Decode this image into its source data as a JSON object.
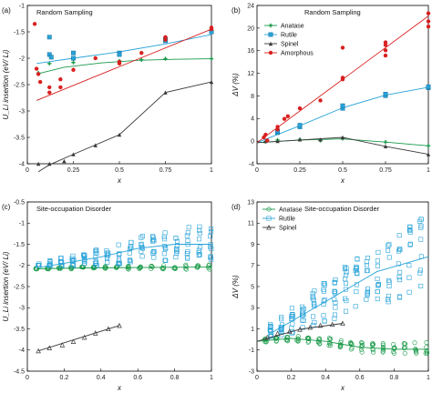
{
  "chart_data": [
    {
      "panel": "(a)",
      "type": "scatter",
      "title": "Random Sampling",
      "xlabel": "x",
      "ylabel": "U_Li insertion (eV/ Li)",
      "xlim": [
        0,
        1
      ],
      "ylim": [
        -4,
        -1
      ],
      "xticks": [
        "0",
        "0.25",
        "0.5",
        "0.75",
        "1"
      ],
      "yticks": [
        "-4",
        "-3.5",
        "-3",
        "-2.5",
        "-2",
        "-1.5",
        "-1"
      ],
      "series": [
        {
          "color": "#1a9a4a",
          "marker": "plus",
          "points": [
            [
              0.06,
              -2.28
            ],
            [
              0.12,
              -2.1
            ],
            [
              0.25,
              -2.08
            ],
            [
              0.5,
              -2.05
            ],
            [
              0.62,
              -2.03
            ],
            [
              0.75,
              -2.01
            ],
            [
              1.0,
              -2.01
            ]
          ],
          "fit": [
            [
              0.05,
              -2.3
            ],
            [
              0.2,
              -2.17
            ],
            [
              0.4,
              -2.09
            ],
            [
              0.6,
              -2.04
            ],
            [
              0.8,
              -2.02
            ],
            [
              1.0,
              -2.01
            ]
          ]
        },
        {
          "color": "#29a3d9",
          "marker": "square",
          "points": [
            [
              0.12,
              -1.6
            ],
            [
              0.12,
              -1.93
            ],
            [
              0.13,
              -1.98
            ],
            [
              0.25,
              -1.9
            ],
            [
              0.25,
              -2.0
            ],
            [
              0.5,
              -1.9
            ],
            [
              0.5,
              -1.93
            ],
            [
              0.75,
              -1.64
            ],
            [
              0.75,
              -1.67
            ],
            [
              1.0,
              -1.5
            ]
          ],
          "fit": [
            [
              0.05,
              -2.1
            ],
            [
              0.25,
              -2.0
            ],
            [
              0.5,
              -1.88
            ],
            [
              0.75,
              -1.73
            ],
            [
              1.0,
              -1.55
            ]
          ]
        },
        {
          "color": "#3a3a3a",
          "marker": "triangle",
          "points": [
            [
              0.06,
              -4.15
            ],
            [
              0.12,
              -4.02
            ],
            [
              0.2,
              -3.95
            ],
            [
              0.25,
              -3.82
            ],
            [
              0.37,
              -3.65
            ],
            [
              0.5,
              -3.45
            ],
            [
              0.75,
              -2.65
            ],
            [
              1.0,
              -2.45
            ]
          ],
          "fit": [
            [
              0.06,
              -4.15
            ],
            [
              0.12,
              -4.02
            ],
            [
              0.25,
              -3.82
            ],
            [
              0.5,
              -3.45
            ],
            [
              0.75,
              -2.65
            ],
            [
              1.0,
              -2.45
            ]
          ]
        },
        {
          "color": "#d92020",
          "marker": "circle",
          "points": [
            [
              0.04,
              -1.35
            ],
            [
              0.05,
              -2.2
            ],
            [
              0.06,
              -2.3
            ],
            [
              0.07,
              -2.45
            ],
            [
              0.12,
              -2.55
            ],
            [
              0.12,
              -2.65
            ],
            [
              0.18,
              -2.4
            ],
            [
              0.18,
              -2.55
            ],
            [
              0.25,
              -2.22
            ],
            [
              0.37,
              -2.0
            ],
            [
              0.5,
              -2.07
            ],
            [
              0.5,
              -2.1
            ],
            [
              0.62,
              -1.9
            ],
            [
              0.75,
              -1.6
            ],
            [
              0.75,
              -1.65
            ],
            [
              1.0,
              -1.42
            ],
            [
              1.0,
              -1.45
            ]
          ],
          "fit": [
            [
              0.05,
              -2.8
            ],
            [
              1.0,
              -1.45
            ]
          ]
        }
      ]
    },
    {
      "panel": "(b)",
      "type": "scatter",
      "title": "Random Sampling",
      "xlabel": "x",
      "ylabel": "ΔV (%)",
      "xlim": [
        0,
        1
      ],
      "ylim": [
        -4,
        26
      ],
      "xticks": [
        "0",
        "0.25",
        "0.5",
        "0.75",
        "1"
      ],
      "yticks": [
        "-4",
        "0",
        "4",
        "8",
        "12",
        "16",
        "20",
        "24"
      ],
      "legend": {
        "position": "top-center",
        "entries": [
          {
            "label": "Anatase",
            "color": "#1a9a4a",
            "marker": "plus"
          },
          {
            "label": "Rutile",
            "color": "#29a3d9",
            "marker": "square"
          },
          {
            "label": "Spinel",
            "color": "#3a3a3a",
            "marker": "triangle"
          },
          {
            "label": "Amorphous",
            "color": "#d92020",
            "marker": "circle"
          }
        ]
      },
      "series": [
        {
          "color": "#1a9a4a",
          "marker": "plus",
          "points": [
            [
              0.05,
              0.2
            ],
            [
              0.12,
              0.5
            ],
            [
              0.25,
              0.6
            ],
            [
              0.37,
              0.4
            ],
            [
              0.5,
              0.8
            ],
            [
              0.75,
              0.1
            ],
            [
              1.0,
              -0.6
            ]
          ],
          "fit": [
            [
              0,
              0
            ],
            [
              0.25,
              0.5
            ],
            [
              0.5,
              0.7
            ],
            [
              0.75,
              0.1
            ],
            [
              1.0,
              -0.6
            ]
          ]
        },
        {
          "color": "#29a3d9",
          "marker": "square",
          "points": [
            [
              0.12,
              1.9
            ],
            [
              0.12,
              2.2
            ],
            [
              0.25,
              3.0
            ],
            [
              0.25,
              3.3
            ],
            [
              0.5,
              6.5
            ],
            [
              0.5,
              7.0
            ],
            [
              0.75,
              8.9
            ],
            [
              0.75,
              9.2
            ],
            [
              1.0,
              10.4
            ],
            [
              1.0,
              10.6
            ]
          ],
          "fit": [
            [
              0,
              0
            ],
            [
              0.25,
              3.2
            ],
            [
              0.5,
              6.6
            ],
            [
              0.75,
              9.0
            ],
            [
              1.0,
              10.5
            ]
          ]
        },
        {
          "color": "#3a3a3a",
          "marker": "triangle",
          "points": [
            [
              0.05,
              0.3
            ],
            [
              0.12,
              0.3
            ],
            [
              0.25,
              0.6
            ],
            [
              0.37,
              0.6
            ],
            [
              0.5,
              1.0
            ],
            [
              0.75,
              -0.7
            ],
            [
              1.0,
              -2.2
            ]
          ],
          "fit": [
            [
              0,
              0
            ],
            [
              0.25,
              0.5
            ],
            [
              0.5,
              1.0
            ],
            [
              0.75,
              -0.7
            ],
            [
              1.0,
              -2.2
            ]
          ]
        },
        {
          "color": "#d92020",
          "marker": "circle",
          "points": [
            [
              0.04,
              1.0
            ],
            [
              0.05,
              1.5
            ],
            [
              0.06,
              0.4
            ],
            [
              0.12,
              2.5
            ],
            [
              0.12,
              3.0
            ],
            [
              0.16,
              4.5
            ],
            [
              0.18,
              5.0
            ],
            [
              0.25,
              6.5
            ],
            [
              0.37,
              8.0
            ],
            [
              0.5,
              12.0
            ],
            [
              0.5,
              12.3
            ],
            [
              0.5,
              18.0
            ],
            [
              0.75,
              16.5
            ],
            [
              0.75,
              17.5
            ],
            [
              0.75,
              18.5
            ],
            [
              0.75,
              19.0
            ],
            [
              1.0,
              22.0
            ],
            [
              1.0,
              23.0
            ],
            [
              1.0,
              24.5
            ]
          ],
          "fit": [
            [
              0,
              0
            ],
            [
              1.0,
              24
            ]
          ]
        }
      ]
    },
    {
      "panel": "(c)",
      "type": "scatter",
      "title": "Site-occupation Disorder",
      "xlabel": "x",
      "ylabel": "U_Li insertion (eV/ Li)",
      "xlim": [
        0,
        1
      ],
      "ylim": [
        -4.5,
        -0.5
      ],
      "xticks": [
        "0",
        "0.2",
        "0.4",
        "0.6",
        "0.8",
        "1"
      ],
      "yticks": [
        "-4.5",
        "-4",
        "-3.5",
        "-3",
        "-2.5",
        "-2",
        "-1.5",
        "-1",
        "-0.5"
      ],
      "series": [
        {
          "name": "Anatase",
          "color": "#1a9a4a",
          "marker": "circle-open",
          "cloud": {
            "x": [
              0.05,
              1.0
            ],
            "y": [
              -2.15,
              -1.95
            ],
            "n": 90
          },
          "fit": [
            [
              0.05,
              -2.08
            ],
            [
              0.3,
              -2.06
            ],
            [
              0.6,
              -2.05
            ],
            [
              1.0,
              -2.04
            ]
          ]
        },
        {
          "name": "Rutile",
          "color": "#29a3d9",
          "marker": "square-open",
          "cloud": {
            "x": [
              0.06,
              1.0
            ],
            "y": [
              -2.0,
              -0.6
            ],
            "n": 150
          },
          "fit": [
            [
              0.06,
              -2.05
            ],
            [
              0.2,
              -1.95
            ],
            [
              0.4,
              -1.8
            ],
            [
              0.6,
              -1.6
            ],
            [
              0.8,
              -1.5
            ],
            [
              1.0,
              -1.5
            ]
          ]
        },
        {
          "name": "Spinel",
          "color": "#3a3a3a",
          "marker": "triangle-open",
          "points": [
            [
              0.06,
              -4.02
            ],
            [
              0.12,
              -3.95
            ],
            [
              0.19,
              -3.88
            ],
            [
              0.25,
              -3.8
            ],
            [
              0.31,
              -3.7
            ],
            [
              0.37,
              -3.6
            ],
            [
              0.44,
              -3.5
            ],
            [
              0.5,
              -3.42
            ]
          ],
          "fit": [
            [
              0.06,
              -4.02
            ],
            [
              0.5,
              -3.42
            ]
          ]
        }
      ]
    },
    {
      "panel": "(d)",
      "type": "scatter",
      "title": "Site-occupation Disorder",
      "xlabel": "x",
      "ylabel": "ΔV (%)",
      "xlim": [
        0,
        1
      ],
      "ylim": [
        -3,
        14
      ],
      "xticks": [
        "0",
        "0.2",
        "0.4",
        "0.6",
        "0.8",
        "1"
      ],
      "yticks": [
        "-3",
        "-1",
        "1",
        "3",
        "5",
        "7",
        "9",
        "11",
        "13"
      ],
      "legend": {
        "position": "top-left",
        "entries": [
          {
            "label": "Anatase",
            "color": "#1a9a4a",
            "marker": "circle-open"
          },
          {
            "label": "Rutile",
            "color": "#29a3d9",
            "marker": "square-open"
          },
          {
            "label": "Spinel",
            "color": "#3a3a3a",
            "marker": "triangle-open"
          }
        ]
      },
      "series": [
        {
          "name": "Anatase",
          "color": "#1a9a4a",
          "marker": "circle-open",
          "cloud": {
            "x": [
              0.05,
              1.0
            ],
            "y": [
              -1.2,
              1.0
            ],
            "n": 110
          },
          "fit": [
            [
              0.0,
              0.0
            ],
            [
              0.2,
              0.3
            ],
            [
              0.4,
              0.0
            ],
            [
              0.6,
              -0.6
            ],
            [
              0.8,
              -0.8
            ],
            [
              1.0,
              -0.8
            ]
          ]
        },
        {
          "name": "Rutile",
          "color": "#29a3d9",
          "marker": "square-open",
          "cloud": {
            "x": [
              0.08,
              1.0
            ],
            "y": [
              0.5,
              13.5
            ],
            "n": 160
          },
          "fit": [
            [
              0.08,
              0.8
            ],
            [
              0.3,
              3.0
            ],
            [
              0.5,
              5.0
            ],
            [
              0.7,
              7.0
            ],
            [
              1.0,
              8.5
            ]
          ]
        },
        {
          "name": "Spinel",
          "color": "#3a3a3a",
          "marker": "triangle-open",
          "points": [
            [
              0.06,
              0.4
            ],
            [
              0.12,
              0.8
            ],
            [
              0.19,
              1.0
            ],
            [
              0.25,
              1.2
            ],
            [
              0.31,
              1.4
            ],
            [
              0.37,
              1.6
            ],
            [
              0.44,
              1.7
            ],
            [
              0.5,
              1.8
            ]
          ],
          "fit": [
            [
              0.0,
              0.0
            ],
            [
              0.25,
              1.2
            ],
            [
              0.5,
              1.8
            ]
          ]
        }
      ]
    }
  ]
}
